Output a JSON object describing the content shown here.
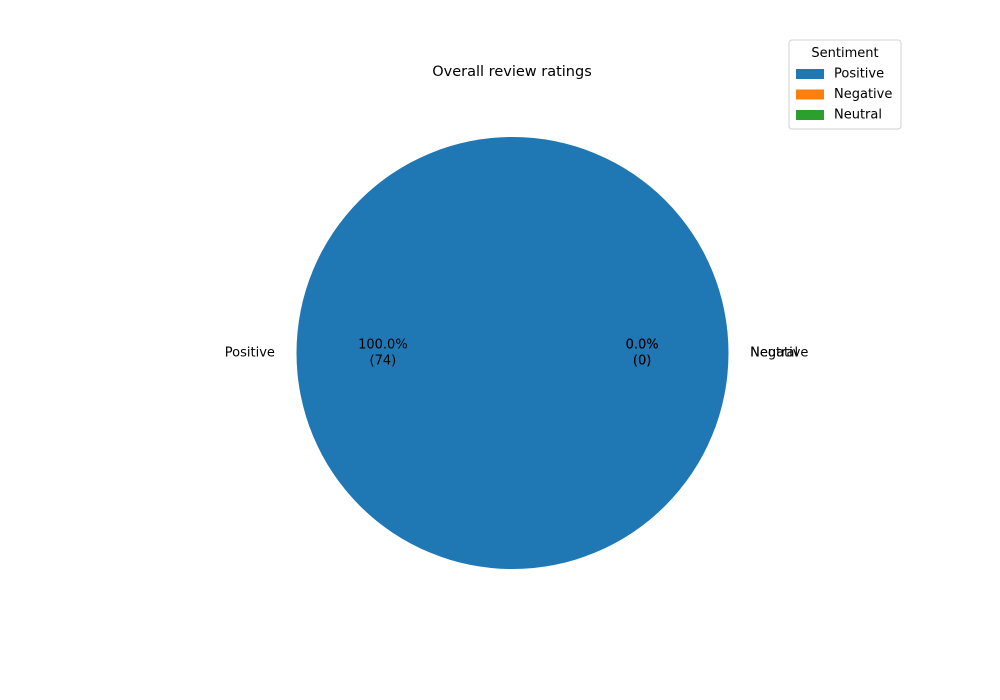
{
  "chart_data": {
    "type": "pie",
    "title": "Overall review ratings",
    "slices": [
      {
        "label": "Positive",
        "value": 74,
        "pct_label": "100.0%",
        "count_label": "(74)",
        "color": "#1f77b4"
      },
      {
        "label": "Negative",
        "value": 0,
        "pct_label": "0.0%",
        "count_label": "(0)",
        "color": "#ff7f0e"
      },
      {
        "label": "Neutral",
        "value": 0,
        "pct_label": "0.0%",
        "count_label": "(0)",
        "color": "#2ca02c"
      }
    ],
    "legend": {
      "title": "Sentiment",
      "placement": "top-right",
      "entries": [
        "Positive",
        "Negative",
        "Neutral"
      ]
    }
  }
}
